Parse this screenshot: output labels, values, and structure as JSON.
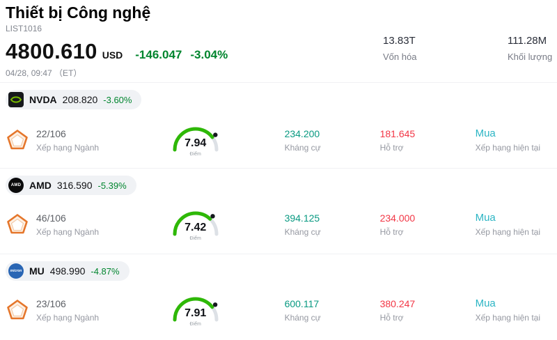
{
  "header": {
    "title": "Thiết bị Công nghệ",
    "list_id": "LIST1016",
    "price": "4800.610",
    "currency": "USD",
    "change": "-146.047",
    "change_pct": "-3.04%",
    "timestamp": "04/28, 09:47 （ET）",
    "market_cap": {
      "value": "13.83T",
      "label": "Vốn hóa"
    },
    "volume": {
      "value": "111.28M",
      "label": "Khối lượng"
    }
  },
  "labels": {
    "rank": "Xếp hạng Ngành",
    "score": "Điểm",
    "resistance": "Kháng cự",
    "support": "Hỗ trợ",
    "rating": "Xếp hạng hiện tại"
  },
  "colors": {
    "change-green": "#00852e",
    "resistance-green": "#089981",
    "support-red": "#f23645",
    "rating-cyan": "#2cb5c4",
    "pill-bg": "#f0f2f5",
    "gauge-green": "#2eb807",
    "gauge-track": "#dde1e6",
    "pentagon-orange": "#e5762b",
    "nvidia-green": "#76b900"
  },
  "stocks": [
    {
      "ticker": "NVDA",
      "logo_icon": "nvidia-logo",
      "price": "208.820",
      "change_pct": "-3.60%",
      "rank": "22/106",
      "score": 7.94,
      "resistance": "234.200",
      "support": "181.645",
      "rating": "Mua"
    },
    {
      "ticker": "AMD",
      "logo_icon": "amd-logo",
      "logo_text": "AMD",
      "price": "316.590",
      "change_pct": "-5.39%",
      "rank": "46/106",
      "score": 7.42,
      "resistance": "394.125",
      "support": "234.000",
      "rating": "Mua"
    },
    {
      "ticker": "MU",
      "logo_icon": "micron-logo",
      "logo_text": "micron",
      "price": "498.990",
      "change_pct": "-4.87%",
      "rank": "23/106",
      "score": 7.91,
      "resistance": "600.117",
      "support": "380.247",
      "rating": "Mua"
    }
  ]
}
